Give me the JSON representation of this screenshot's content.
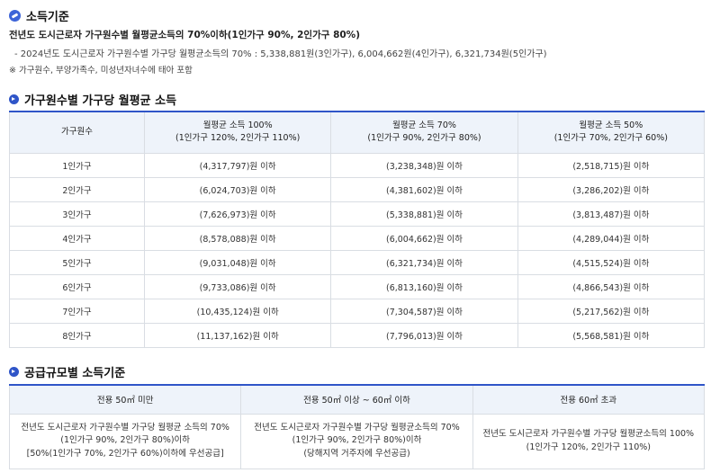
{
  "section1": {
    "title": "소득기준",
    "line1": "전년도 도시근로자 가구원수별 월평균소득의 70%이하(1인가구 90%, 2인가구 80%)",
    "line2": "- 2024년도 도시근로자 가구원수별 가구당 월평균소득의 70% : 5,338,881원(3인가구), 6,004,662원(4인가구), 6,321,734원(5인가구)",
    "line3": "※ 가구원수, 부양가족수, 미성년자녀수에 태아 포함"
  },
  "section2": {
    "title": "가구원수별 가구당 월평균 소득",
    "headers": [
      {
        "l1": "가구원수",
        "l2": ""
      },
      {
        "l1": "월평균 소득 100%",
        "l2": "(1인가구 120%, 2인가구 110%)"
      },
      {
        "l1": "월평균 소득 70%",
        "l2": "(1인가구 90%, 2인가구 80%)"
      },
      {
        "l1": "월평균 소득 50%",
        "l2": "(1인가구 70%, 2인가구 60%)"
      }
    ],
    "rows": [
      [
        "1인가구",
        "(4,317,797)원 이하",
        "(3,238,348)원 이하",
        "(2,518,715)원 이하"
      ],
      [
        "2인가구",
        "(6,024,703)원 이하",
        "(4,381,602)원 이하",
        "(3,286,202)원 이하"
      ],
      [
        "3인가구",
        "(7,626,973)원 이하",
        "(5,338,881)원 이하",
        "(3,813,487)원 이하"
      ],
      [
        "4인가구",
        "(8,578,088)원 이하",
        "(6,004,662)원 이하",
        "(4,289,044)원 이하"
      ],
      [
        "5인가구",
        "(9,031,048)원 이하",
        "(6,321,734)원 이하",
        "(4,515,524)원 이하"
      ],
      [
        "6인가구",
        "(9,733,086)원 이하",
        "(6,813,160)원 이하",
        "(4,866,543)원 이하"
      ],
      [
        "7인가구",
        "(10,435,124)원 이하",
        "(7,304,587)원 이하",
        "(5,217,562)원 이하"
      ],
      [
        "8인가구",
        "(11,137,162)원 이하",
        "(7,796,013)원 이하",
        "(5,568,581)원 이하"
      ]
    ]
  },
  "section3": {
    "title": "공급규모별 소득기준",
    "headers": [
      "전용 50㎡ 미만",
      "전용 50㎡ 이상 ~ 60㎡ 이하",
      "전용 60㎡ 초과"
    ],
    "cells": [
      [
        "전년도 도시근로자 가구원수별 가구당 월평균 소득의 70%",
        "(1인가구 90%, 2인가구 80%)이하",
        "[50%(1인가구 70%, 2인가구 60%)이하에 우선공급]"
      ],
      [
        "전년도 도시근로자 가구원수별 가구당 월평균소득의 70%",
        "(1인가구 90%, 2인가구 80%)이하",
        "(당해지역 거주자에 우선공급)"
      ],
      [
        "전년도 도시근로자 가구원수별 가구당 월평균소득의 100%",
        "(1인가구 120%, 2인가구 110%)",
        ""
      ]
    ]
  }
}
